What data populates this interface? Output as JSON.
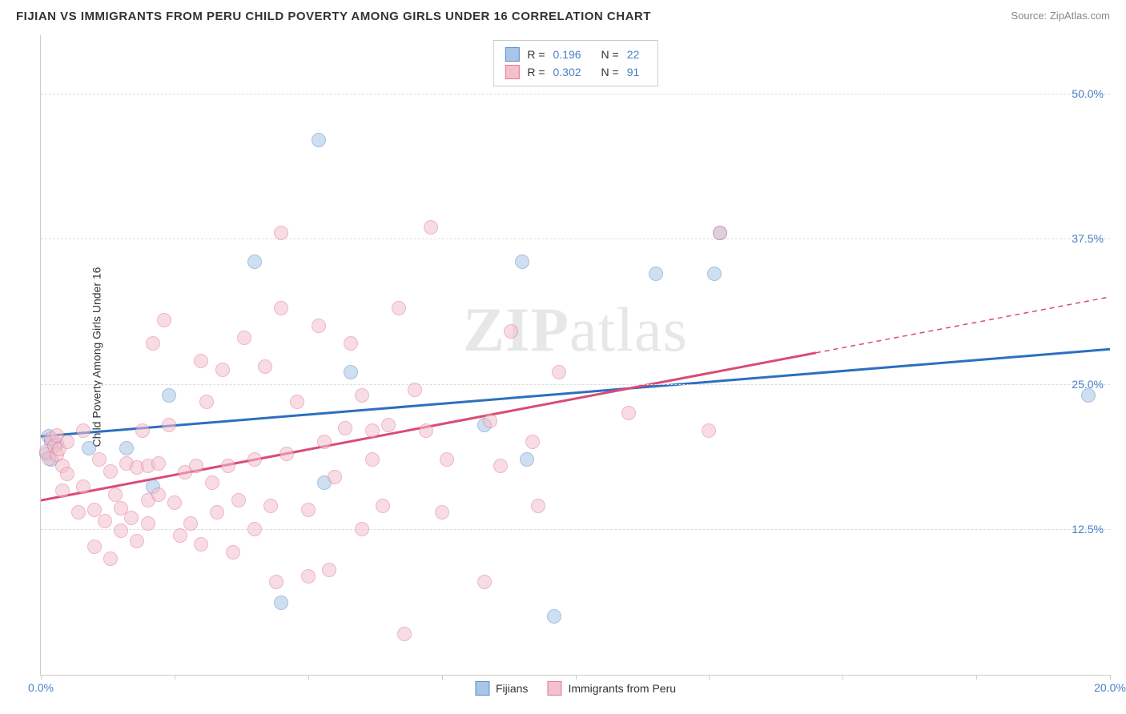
{
  "title": "FIJIAN VS IMMIGRANTS FROM PERU CHILD POVERTY AMONG GIRLS UNDER 16 CORRELATION CHART",
  "source": "Source: ZipAtlas.com",
  "y_axis_label": "Child Poverty Among Girls Under 16",
  "watermark_bold": "ZIP",
  "watermark_rest": "atlas",
  "chart": {
    "type": "scatter",
    "xlim": [
      0,
      20
    ],
    "ylim": [
      0,
      55
    ],
    "x_ticks": [
      0,
      2.5,
      5,
      7.5,
      10,
      12.5,
      15,
      17.5,
      20
    ],
    "x_tick_labels": {
      "0": "0.0%",
      "20": "20.0%"
    },
    "y_gridlines": [
      12.5,
      25.0,
      37.5,
      50.0
    ],
    "y_tick_labels": [
      "12.5%",
      "25.0%",
      "37.5%",
      "50.0%"
    ],
    "background_color": "#ffffff",
    "grid_color": "#dddddd",
    "axis_color": "#cccccc",
    "label_fontsize": 14,
    "tick_color": "#4a7ec7",
    "dot_radius": 9,
    "dot_opacity": 0.55,
    "series": [
      {
        "name": "Fijians",
        "color_fill": "#a8c5e8",
        "color_stroke": "#5b8fc7",
        "line_color": "#2e6fc0",
        "line_width": 3,
        "R": "0.196",
        "N": "22",
        "trend": {
          "x1": 0,
          "y1": 20.5,
          "x2": 20,
          "y2": 28.0,
          "solid_until": 20
        },
        "points": [
          [
            0.1,
            19.0
          ],
          [
            0.15,
            20.5
          ],
          [
            0.2,
            18.5
          ],
          [
            0.2,
            20.0
          ],
          [
            0.3,
            19.8
          ],
          [
            0.9,
            19.5
          ],
          [
            1.6,
            19.5
          ],
          [
            2.1,
            16.2
          ],
          [
            2.4,
            24.0
          ],
          [
            4.0,
            35.5
          ],
          [
            4.5,
            6.2
          ],
          [
            5.2,
            46.0
          ],
          [
            5.3,
            16.5
          ],
          [
            5.8,
            26.0
          ],
          [
            8.3,
            21.5
          ],
          [
            9.0,
            35.5
          ],
          [
            9.1,
            18.5
          ],
          [
            9.6,
            5.0
          ],
          [
            11.5,
            34.5
          ],
          [
            12.6,
            34.5
          ],
          [
            12.7,
            38.0
          ],
          [
            19.6,
            24.0
          ]
        ]
      },
      {
        "name": "Immigrants from Peru",
        "color_fill": "#f3c1cd",
        "color_stroke": "#e27a96",
        "line_color": "#d94c75",
        "line_width": 3,
        "R": "0.302",
        "N": "91",
        "trend": {
          "x1": 0,
          "y1": 15.0,
          "x2": 20,
          "y2": 32.5,
          "solid_until": 14.5
        },
        "points": [
          [
            0.1,
            19.2
          ],
          [
            0.15,
            18.6
          ],
          [
            0.2,
            20.3
          ],
          [
            0.25,
            19.7
          ],
          [
            0.3,
            18.9
          ],
          [
            0.3,
            20.6
          ],
          [
            0.35,
            19.4
          ],
          [
            0.4,
            18.0
          ],
          [
            0.4,
            15.8
          ],
          [
            0.5,
            20.0
          ],
          [
            0.5,
            17.3
          ],
          [
            0.7,
            14.0
          ],
          [
            0.8,
            16.2
          ],
          [
            0.8,
            21.0
          ],
          [
            1.0,
            14.2
          ],
          [
            1.0,
            11.0
          ],
          [
            1.1,
            18.5
          ],
          [
            1.2,
            13.2
          ],
          [
            1.3,
            17.5
          ],
          [
            1.3,
            10.0
          ],
          [
            1.4,
            15.5
          ],
          [
            1.5,
            12.4
          ],
          [
            1.5,
            14.3
          ],
          [
            1.6,
            18.2
          ],
          [
            1.7,
            13.5
          ],
          [
            1.8,
            11.5
          ],
          [
            1.8,
            17.8
          ],
          [
            1.9,
            21.0
          ],
          [
            2.0,
            13.0
          ],
          [
            2.0,
            15.0
          ],
          [
            2.0,
            18.0
          ],
          [
            2.1,
            28.5
          ],
          [
            2.2,
            15.5
          ],
          [
            2.2,
            18.2
          ],
          [
            2.3,
            30.5
          ],
          [
            2.4,
            21.5
          ],
          [
            2.5,
            14.8
          ],
          [
            2.6,
            12.0
          ],
          [
            2.7,
            17.4
          ],
          [
            2.8,
            13.0
          ],
          [
            2.9,
            18.0
          ],
          [
            3.0,
            27.0
          ],
          [
            3.0,
            11.2
          ],
          [
            3.1,
            23.5
          ],
          [
            3.2,
            16.5
          ],
          [
            3.3,
            14.0
          ],
          [
            3.4,
            26.2
          ],
          [
            3.5,
            18.0
          ],
          [
            3.6,
            10.5
          ],
          [
            3.7,
            15.0
          ],
          [
            3.8,
            29.0
          ],
          [
            4.0,
            12.5
          ],
          [
            4.0,
            18.5
          ],
          [
            4.2,
            26.5
          ],
          [
            4.3,
            14.5
          ],
          [
            4.4,
            8.0
          ],
          [
            4.5,
            38.0
          ],
          [
            4.5,
            31.5
          ],
          [
            4.6,
            19.0
          ],
          [
            4.8,
            23.5
          ],
          [
            5.0,
            8.5
          ],
          [
            5.0,
            14.2
          ],
          [
            5.2,
            30.0
          ],
          [
            5.3,
            20.0
          ],
          [
            5.4,
            9.0
          ],
          [
            5.5,
            17.0
          ],
          [
            5.7,
            21.2
          ],
          [
            5.8,
            28.5
          ],
          [
            6.0,
            24.0
          ],
          [
            6.0,
            12.5
          ],
          [
            6.2,
            21.0
          ],
          [
            6.2,
            18.5
          ],
          [
            6.4,
            14.5
          ],
          [
            6.5,
            21.5
          ],
          [
            6.7,
            31.5
          ],
          [
            6.8,
            3.5
          ],
          [
            7.0,
            24.5
          ],
          [
            7.2,
            21.0
          ],
          [
            7.3,
            38.5
          ],
          [
            7.5,
            14.0
          ],
          [
            7.6,
            18.5
          ],
          [
            8.3,
            8.0
          ],
          [
            8.4,
            21.8
          ],
          [
            8.6,
            18.0
          ],
          [
            8.8,
            29.5
          ],
          [
            9.2,
            20.0
          ],
          [
            9.3,
            14.5
          ],
          [
            9.7,
            26.0
          ],
          [
            11.0,
            22.5
          ],
          [
            12.5,
            21.0
          ],
          [
            12.7,
            38.0
          ]
        ]
      }
    ]
  },
  "legend_labels": {
    "fijians": "Fijians",
    "peru": "Immigrants from Peru"
  }
}
